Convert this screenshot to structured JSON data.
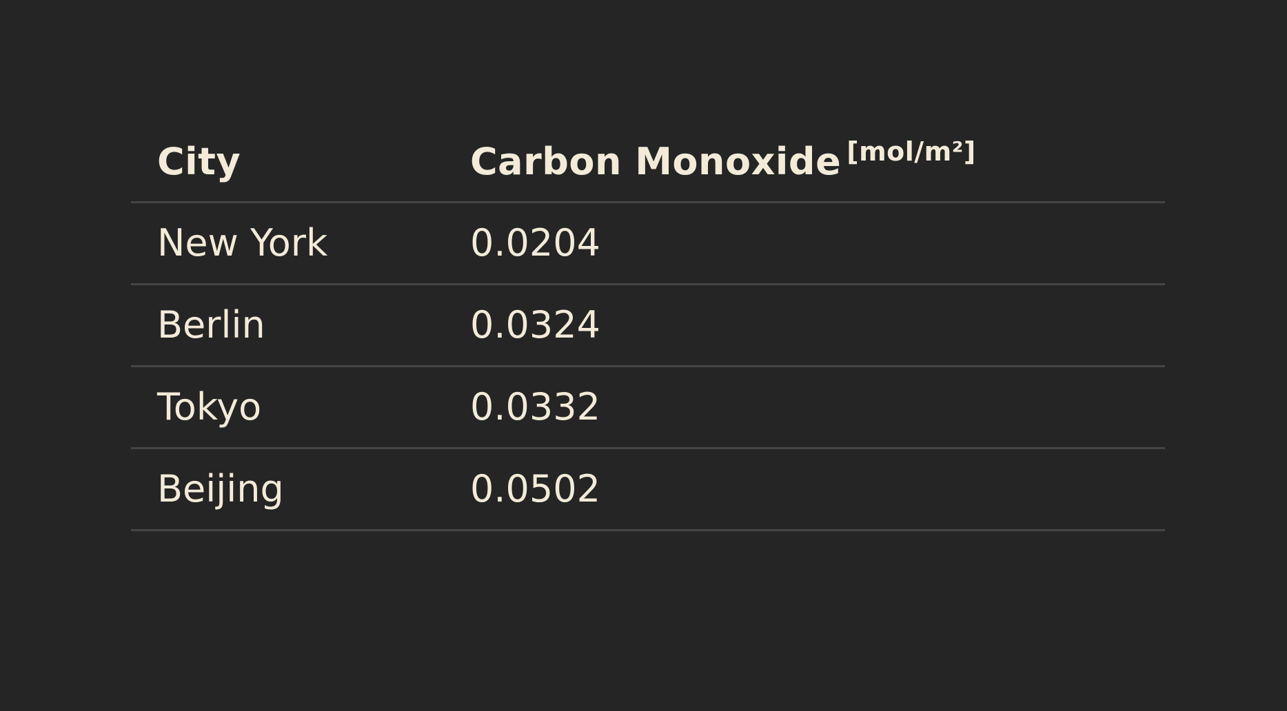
{
  "chart_data": {
    "type": "table",
    "columns": [
      {
        "label": "City",
        "unit": ""
      },
      {
        "label": "Carbon Monoxide",
        "unit": "[mol/m²]"
      }
    ],
    "rows": [
      {
        "city": "New York",
        "value": "0.0204"
      },
      {
        "city": "Berlin",
        "value": "0.0324"
      },
      {
        "city": "Tokyo",
        "value": "0.0332"
      },
      {
        "city": "Beijing",
        "value": "0.0502"
      }
    ]
  },
  "colors": {
    "background": "#252525",
    "text": "#f3ead8",
    "divider": "#454545"
  }
}
